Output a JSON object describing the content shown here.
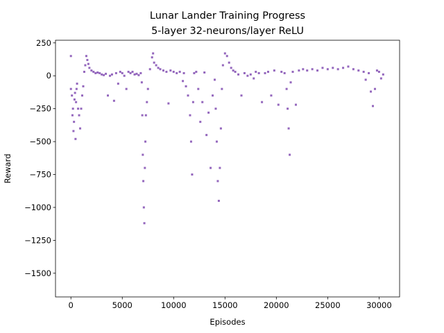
{
  "chart_data": {
    "type": "scatter",
    "title": "Lunar Lander Training Progress",
    "subtitle": "5-layer 32-neurons/layer ReLU",
    "xlabel": "Episodes",
    "ylabel": "Reward",
    "xlim": [
      -1500,
      32000
    ],
    "ylim": [
      -1680,
      270
    ],
    "x_ticks": [
      0,
      5000,
      10000,
      15000,
      20000,
      25000,
      30000
    ],
    "y_ticks": [
      250,
      0,
      -250,
      -500,
      -750,
      -1000,
      -1250,
      -1500
    ],
    "x_tick_labels": [
      "0",
      "5000",
      "10000",
      "15000",
      "20000",
      "25000",
      "30000"
    ],
    "y_tick_labels": [
      "250",
      "0",
      "−250",
      "−500",
      "−750",
      "−1000",
      "−1250",
      "−1500"
    ],
    "grid": false,
    "marker_color": "#9467bd",
    "series": [
      {
        "points": [
          [
            0,
            -100
          ],
          [
            0,
            150
          ],
          [
            100,
            -150
          ],
          [
            150,
            -300
          ],
          [
            200,
            -250
          ],
          [
            250,
            -420
          ],
          [
            300,
            -350
          ],
          [
            350,
            -180
          ],
          [
            400,
            -130
          ],
          [
            450,
            -480
          ],
          [
            500,
            -200
          ],
          [
            550,
            -100
          ],
          [
            600,
            -60
          ],
          [
            700,
            -250
          ],
          [
            800,
            -300
          ],
          [
            900,
            -400
          ],
          [
            1000,
            -250
          ],
          [
            1100,
            -150
          ],
          [
            1200,
            -80
          ],
          [
            1300,
            30
          ],
          [
            1400,
            80
          ],
          [
            1500,
            150
          ],
          [
            1600,
            120
          ],
          [
            1700,
            90
          ],
          [
            1800,
            60
          ],
          [
            2000,
            40
          ],
          [
            2200,
            30
          ],
          [
            2400,
            20
          ],
          [
            2600,
            25
          ],
          [
            2800,
            20
          ],
          [
            3000,
            10
          ],
          [
            3200,
            5
          ],
          [
            3400,
            15
          ],
          [
            3600,
            -150
          ],
          [
            3800,
            0
          ],
          [
            4000,
            10
          ],
          [
            4200,
            -190
          ],
          [
            4400,
            20
          ],
          [
            4600,
            -60
          ],
          [
            4800,
            30
          ],
          [
            5000,
            20
          ],
          [
            5200,
            0
          ],
          [
            5400,
            -100
          ],
          [
            5600,
            30
          ],
          [
            5800,
            20
          ],
          [
            6000,
            30
          ],
          [
            6200,
            10
          ],
          [
            6400,
            15
          ],
          [
            6600,
            5
          ],
          [
            6800,
            20
          ],
          [
            6900,
            -50
          ],
          [
            6950,
            -300
          ],
          [
            7000,
            -600
          ],
          [
            7050,
            -800
          ],
          [
            7100,
            -1000
          ],
          [
            7150,
            -1120
          ],
          [
            7200,
            -700
          ],
          [
            7250,
            -500
          ],
          [
            7300,
            -300
          ],
          [
            7400,
            -200
          ],
          [
            7500,
            -100
          ],
          [
            7700,
            50
          ],
          [
            7900,
            140
          ],
          [
            8000,
            170
          ],
          [
            8100,
            100
          ],
          [
            8300,
            80
          ],
          [
            8500,
            60
          ],
          [
            8700,
            50
          ],
          [
            9000,
            40
          ],
          [
            9300,
            30
          ],
          [
            9500,
            -210
          ],
          [
            9700,
            40
          ],
          [
            10000,
            30
          ],
          [
            10300,
            20
          ],
          [
            10600,
            30
          ],
          [
            10900,
            -40
          ],
          [
            11000,
            20
          ],
          [
            11200,
            -80
          ],
          [
            11400,
            -150
          ],
          [
            11600,
            -300
          ],
          [
            11700,
            -500
          ],
          [
            11800,
            -750
          ],
          [
            11900,
            -200
          ],
          [
            12000,
            20
          ],
          [
            12200,
            30
          ],
          [
            12400,
            -100
          ],
          [
            12600,
            -350
          ],
          [
            12800,
            -200
          ],
          [
            13000,
            25
          ],
          [
            13200,
            -450
          ],
          [
            13400,
            -280
          ],
          [
            13600,
            -700
          ],
          [
            13800,
            -150
          ],
          [
            14000,
            -30
          ],
          [
            14100,
            -250
          ],
          [
            14200,
            -500
          ],
          [
            14300,
            -800
          ],
          [
            14400,
            -950
          ],
          [
            14500,
            -700
          ],
          [
            14600,
            -400
          ],
          [
            14700,
            -100
          ],
          [
            14800,
            80
          ],
          [
            15000,
            170
          ],
          [
            15200,
            150
          ],
          [
            15400,
            100
          ],
          [
            15600,
            60
          ],
          [
            15800,
            40
          ],
          [
            16000,
            30
          ],
          [
            16300,
            10
          ],
          [
            16600,
            -150
          ],
          [
            16900,
            20
          ],
          [
            17200,
            0
          ],
          [
            17500,
            10
          ],
          [
            17800,
            -20
          ],
          [
            18000,
            30
          ],
          [
            18300,
            20
          ],
          [
            18600,
            -200
          ],
          [
            18900,
            20
          ],
          [
            19200,
            30
          ],
          [
            19500,
            -150
          ],
          [
            19800,
            40
          ],
          [
            20200,
            -220
          ],
          [
            20500,
            30
          ],
          [
            20800,
            20
          ],
          [
            21000,
            -100
          ],
          [
            21100,
            -250
          ],
          [
            21200,
            -400
          ],
          [
            21300,
            -600
          ],
          [
            21400,
            -50
          ],
          [
            21600,
            30
          ],
          [
            21900,
            -220
          ],
          [
            22200,
            40
          ],
          [
            22600,
            50
          ],
          [
            23000,
            40
          ],
          [
            23500,
            50
          ],
          [
            24000,
            40
          ],
          [
            24500,
            60
          ],
          [
            25000,
            50
          ],
          [
            25500,
            60
          ],
          [
            26000,
            50
          ],
          [
            26500,
            60
          ],
          [
            27000,
            70
          ],
          [
            27500,
            50
          ],
          [
            28000,
            40
          ],
          [
            28500,
            30
          ],
          [
            28700,
            -30
          ],
          [
            29000,
            20
          ],
          [
            29200,
            -120
          ],
          [
            29400,
            -230
          ],
          [
            29600,
            -100
          ],
          [
            29800,
            40
          ],
          [
            30000,
            30
          ],
          [
            30200,
            -20
          ],
          [
            30400,
            10
          ]
        ]
      }
    ]
  }
}
